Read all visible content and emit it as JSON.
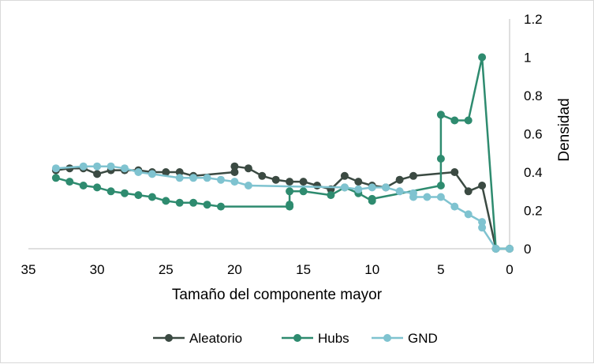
{
  "chart_data": {
    "type": "line",
    "xlabel": "Tamaño del componente mayor",
    "ylabel": "Densidad",
    "xlim": [
      35,
      0
    ],
    "ylim": [
      0,
      1.2
    ],
    "x_reversed": true,
    "y_axis_position": "right",
    "xticks": [
      "35",
      "30",
      "25",
      "20",
      "15",
      "10",
      "5",
      "0"
    ],
    "yticks": [
      "0",
      "0.2",
      "0.4",
      "0.6",
      "0.8",
      "1",
      "1.2"
    ],
    "grid": false,
    "legend_position": "bottom",
    "series": [
      {
        "name": "Aleatorio",
        "color": "#3b4a42",
        "points": [
          [
            33,
            0.41
          ],
          [
            32,
            0.42
          ],
          [
            31,
            0.42
          ],
          [
            30,
            0.39
          ],
          [
            29,
            0.41
          ],
          [
            28,
            0.41
          ],
          [
            27,
            0.41
          ],
          [
            26,
            0.4
          ],
          [
            25,
            0.4
          ],
          [
            24,
            0.4
          ],
          [
            23,
            0.38
          ],
          [
            20,
            0.4
          ],
          [
            20,
            0.43
          ],
          [
            19,
            0.42
          ],
          [
            18,
            0.38
          ],
          [
            17,
            0.36
          ],
          [
            16,
            0.35
          ],
          [
            15,
            0.35
          ],
          [
            14,
            0.33
          ],
          [
            13,
            0.31
          ],
          [
            12,
            0.38
          ],
          [
            11,
            0.35
          ],
          [
            10,
            0.33
          ],
          [
            9,
            0.32
          ],
          [
            8,
            0.36
          ],
          [
            7,
            0.38
          ],
          [
            4,
            0.4
          ],
          [
            3,
            0.3
          ],
          [
            2,
            0.33
          ],
          [
            1,
            0.0
          ],
          [
            0,
            0.0
          ]
        ]
      },
      {
        "name": "Hubs",
        "color": "#2e8b6f",
        "points": [
          [
            33,
            0.37
          ],
          [
            32,
            0.35
          ],
          [
            31,
            0.33
          ],
          [
            30,
            0.32
          ],
          [
            29,
            0.3
          ],
          [
            28,
            0.29
          ],
          [
            27,
            0.28
          ],
          [
            26,
            0.27
          ],
          [
            25,
            0.25
          ],
          [
            24,
            0.24
          ],
          [
            23,
            0.24
          ],
          [
            22,
            0.23
          ],
          [
            21,
            0.22
          ],
          [
            16,
            0.22
          ],
          [
            16,
            0.23
          ],
          [
            16,
            0.3
          ],
          [
            15,
            0.3
          ],
          [
            13,
            0.28
          ],
          [
            12,
            0.32
          ],
          [
            11,
            0.29
          ],
          [
            10,
            0.25
          ],
          [
            10,
            0.26
          ],
          [
            5,
            0.33
          ],
          [
            5,
            0.47
          ],
          [
            5,
            0.7
          ],
          [
            4,
            0.67
          ],
          [
            3,
            0.67
          ],
          [
            2,
            1.0
          ],
          [
            1,
            0.0
          ],
          [
            0,
            0.0
          ]
        ]
      },
      {
        "name": "GND",
        "color": "#7fc3d0",
        "points": [
          [
            33,
            0.42
          ],
          [
            31,
            0.43
          ],
          [
            30,
            0.43
          ],
          [
            29,
            0.43
          ],
          [
            28,
            0.42
          ],
          [
            27,
            0.4
          ],
          [
            26,
            0.39
          ],
          [
            24,
            0.37
          ],
          [
            23,
            0.37
          ],
          [
            22,
            0.37
          ],
          [
            21,
            0.36
          ],
          [
            20,
            0.35
          ],
          [
            19,
            0.33
          ],
          [
            12,
            0.32
          ],
          [
            11,
            0.31
          ],
          [
            10,
            0.32
          ],
          [
            9,
            0.32
          ],
          [
            8,
            0.3
          ],
          [
            7,
            0.29
          ],
          [
            7,
            0.27
          ],
          [
            6,
            0.27
          ],
          [
            5,
            0.27
          ],
          [
            4,
            0.22
          ],
          [
            3,
            0.18
          ],
          [
            2,
            0.14
          ],
          [
            2,
            0.11
          ],
          [
            1,
            0.0
          ],
          [
            0,
            0.0
          ]
        ]
      }
    ]
  }
}
